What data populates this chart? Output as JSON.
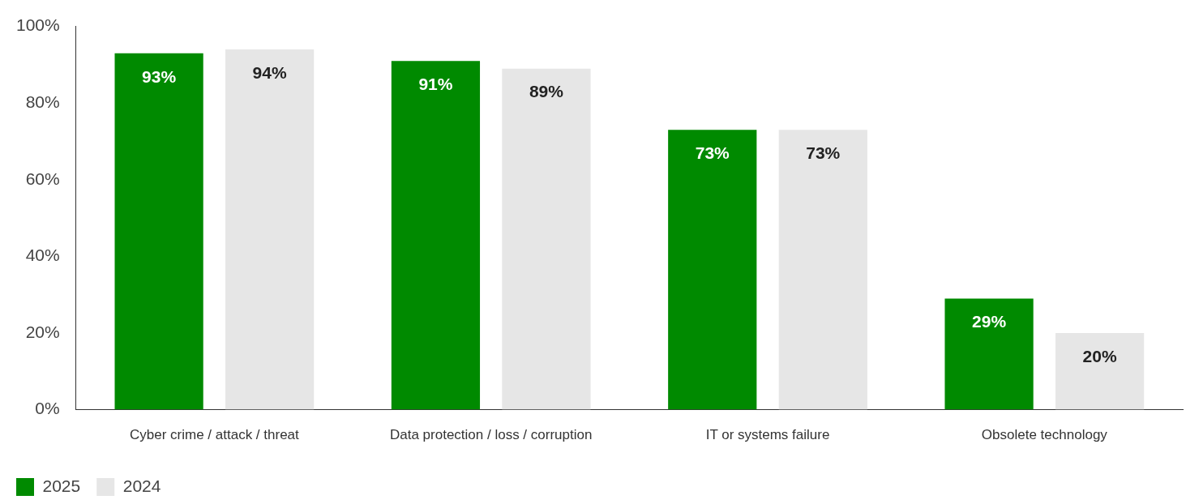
{
  "chart_data": {
    "type": "bar",
    "categories": [
      "Cyber crime / attack / threat",
      "Data protection / loss / corruption",
      "IT or systems failure",
      "Obsolete technology"
    ],
    "series": [
      {
        "name": "2025",
        "color": "#008a00",
        "values": [
          93,
          91,
          73,
          29
        ],
        "value_labels": [
          "93%",
          "91%",
          "73%",
          "29%"
        ]
      },
      {
        "name": "2024",
        "color": "#e6e6e6",
        "values": [
          94,
          89,
          73,
          20
        ],
        "value_labels": [
          "94%",
          "89%",
          "73%",
          "20%"
        ]
      }
    ],
    "ylim": [
      0,
      100
    ],
    "yticks": [
      {
        "value": 0,
        "label": "0%"
      },
      {
        "value": 20,
        "label": "20%"
      },
      {
        "value": 40,
        "label": "40%"
      },
      {
        "value": 60,
        "label": "60%"
      },
      {
        "value": 80,
        "label": "80%"
      },
      {
        "value": 100,
        "label": "100%"
      }
    ],
    "grid": false,
    "legend": "bottom left"
  }
}
